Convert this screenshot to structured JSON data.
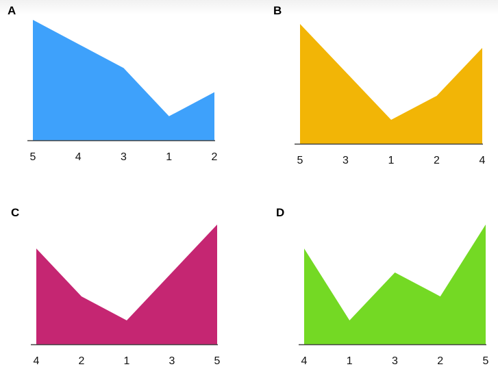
{
  "chart_data": [
    {
      "type": "area",
      "title": "A",
      "categories": [
        "5",
        "4",
        "3",
        "1",
        "2"
      ],
      "values": [
        5,
        4,
        3,
        1,
        2
      ],
      "color": "#3ea1fb",
      "ylim": [
        0,
        5
      ]
    },
    {
      "type": "area",
      "title": "B",
      "categories": [
        "5",
        "3",
        "1",
        "2",
        "4"
      ],
      "values": [
        5,
        3,
        1,
        2,
        4
      ],
      "color": "#f2b506",
      "ylim": [
        0,
        5
      ]
    },
    {
      "type": "area",
      "title": "C",
      "categories": [
        "4",
        "2",
        "1",
        "3",
        "5"
      ],
      "values": [
        4,
        2,
        1,
        3,
        5
      ],
      "color": "#c52672",
      "ylim": [
        0,
        5
      ]
    },
    {
      "type": "area",
      "title": "D",
      "categories": [
        "4",
        "1",
        "3",
        "2",
        "5"
      ],
      "values": [
        4,
        1,
        3,
        2,
        5
      ],
      "color": "#74d924",
      "ylim": [
        0,
        5
      ]
    }
  ]
}
